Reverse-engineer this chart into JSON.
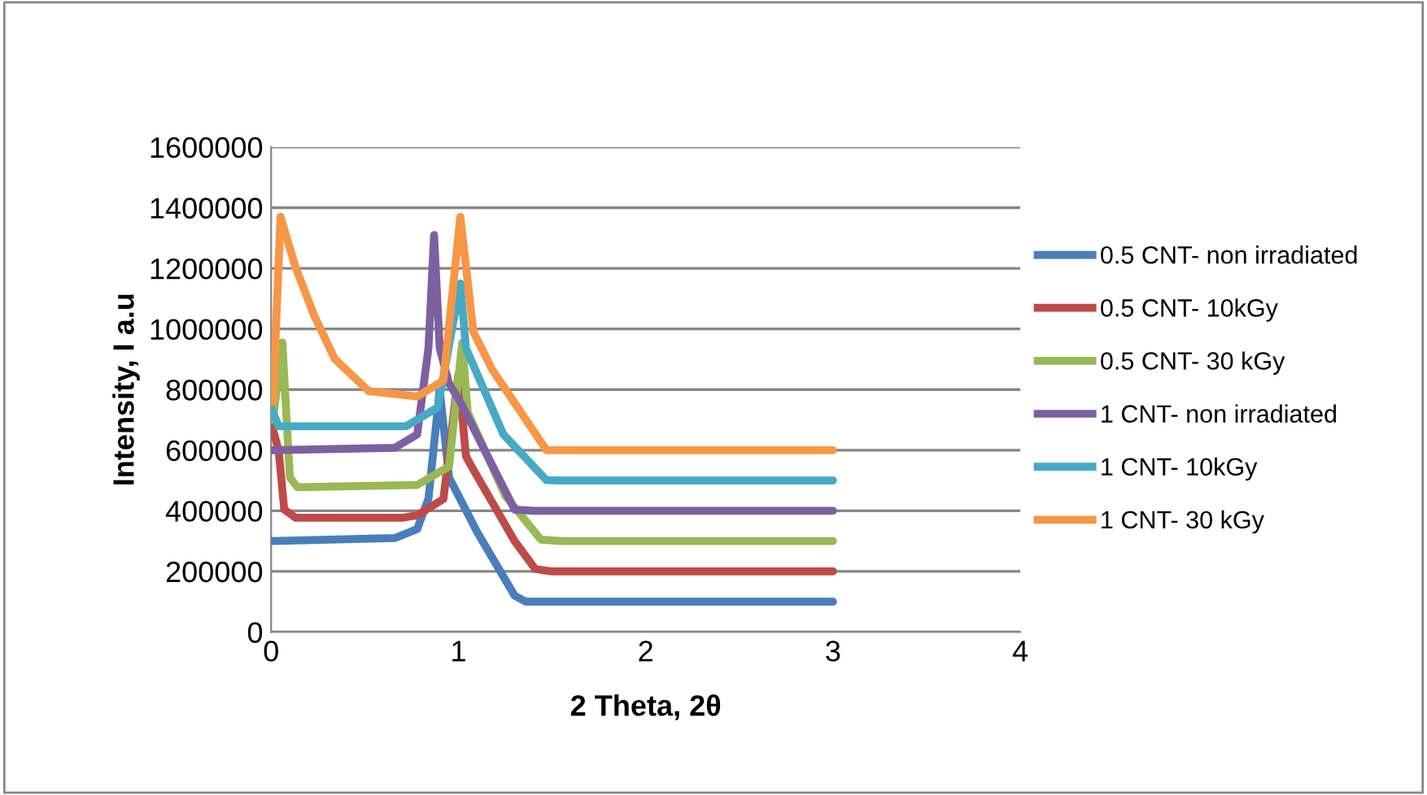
{
  "chart_data": {
    "type": "line",
    "xlabel": "2 Theta, 2θ",
    "ylabel": "Intensity, I a.u",
    "xlim": [
      0,
      4
    ],
    "xticks": [
      0,
      1,
      2,
      3,
      4
    ],
    "ylim": [
      0,
      1600000
    ],
    "yticks": [
      0,
      200000,
      400000,
      600000,
      800000,
      1000000,
      1200000,
      1400000,
      1600000
    ],
    "grid": "y",
    "legend": "right",
    "marker": "none",
    "line_style": "solid",
    "series": [
      {
        "name": "0.5 CNT- non irradiated",
        "color": "#4a7ebb",
        "x": [
          0,
          0.66,
          0.78,
          0.84,
          0.9,
          0.95,
          1.1,
          1.3,
          1.36,
          1.45,
          3
        ],
        "values": [
          300000,
          310000,
          340000,
          440000,
          800000,
          510000,
          330000,
          120000,
          100000,
          100000,
          100000
        ]
      },
      {
        "name": "0.5 CNT- 10kGy",
        "color": "#be4b48",
        "x": [
          0,
          0.04,
          0.07,
          0.13,
          0.7,
          0.78,
          0.92,
          1.0,
          1.04,
          1.07,
          1.3,
          1.41,
          1.5,
          3
        ],
        "values": [
          690000,
          600000,
          404000,
          377000,
          377000,
          385000,
          439000,
          850000,
          581000,
          546000,
          300000,
          208000,
          200000,
          200000
        ]
      },
      {
        "name": "0.5 CNT- 30 kGy",
        "color": "#98b954",
        "x": [
          0.01,
          0.06,
          0.1,
          0.14,
          0.78,
          0.95,
          1.02,
          1.05,
          1.25,
          1.44,
          1.55,
          3
        ],
        "values": [
          700000,
          955000,
          510000,
          478000,
          485000,
          546000,
          955000,
          724000,
          450000,
          305000,
          300000,
          300000
        ]
      },
      {
        "name": "1 CNT- non irradiated",
        "color": "#7d60a0",
        "x": [
          0,
          0.66,
          0.78,
          0.84,
          0.87,
          0.9,
          0.95,
          1.01,
          1.3,
          1.4,
          3
        ],
        "values": [
          600000,
          608000,
          652000,
          937000,
          1310000,
          937000,
          820000,
          759000,
          404000,
          400000,
          400000
        ]
      },
      {
        "name": "1 CNT- 10kGy",
        "color": "#46aac5",
        "x": [
          0,
          0.04,
          0.72,
          0.89,
          1.01,
          1.04,
          1.24,
          1.47,
          1.55,
          3
        ],
        "values": [
          741000,
          679000,
          679000,
          741000,
          1150000,
          937000,
          652000,
          501000,
          500000,
          500000
        ]
      },
      {
        "name": "1 CNT- 30 kGy",
        "color": "#f79646",
        "x": [
          0.01,
          0.05,
          0.13,
          0.23,
          0.34,
          0.52,
          0.78,
          0.92,
          1.01,
          1.08,
          1.18,
          1.47,
          1.55,
          3
        ],
        "values": [
          759000,
          1370000,
          1204000,
          1044000,
          901000,
          795000,
          777000,
          830000,
          1370000,
          990000,
          866000,
          600000,
          600000,
          600000
        ]
      }
    ]
  }
}
